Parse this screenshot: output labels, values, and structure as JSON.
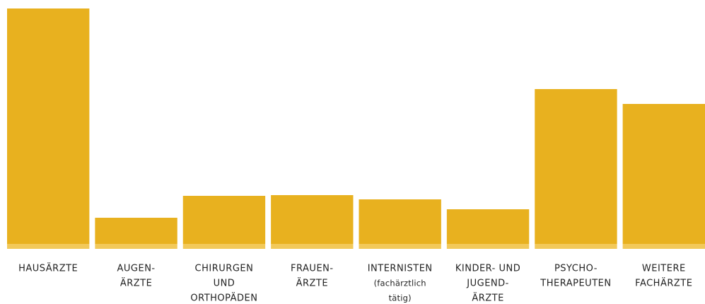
{
  "chart_data": {
    "type": "bar",
    "categories": [
      [
        "HAUSÄRZTE"
      ],
      [
        "AUGEN-",
        "ÄRZTE"
      ],
      [
        "CHIRURGEN",
        "UND",
        "ORTHOPÄDEN"
      ],
      [
        "FRAUEN-",
        "ÄRZTE"
      ],
      [
        "INTERNISTEN",
        "(fachärztlich",
        "tätig)"
      ],
      [
        "KINDER- UND",
        "JUGEND-",
        "ÄRZTE"
      ],
      [
        "PSYCHO-",
        "THERAPEUTEN"
      ],
      [
        "WEITERE",
        "FACHÄRZTE"
      ]
    ],
    "values": [
      333,
      37,
      68,
      69,
      63,
      49,
      219,
      198
    ],
    "color": "#e8b11f",
    "ylim": [
      0,
      333
    ]
  }
}
